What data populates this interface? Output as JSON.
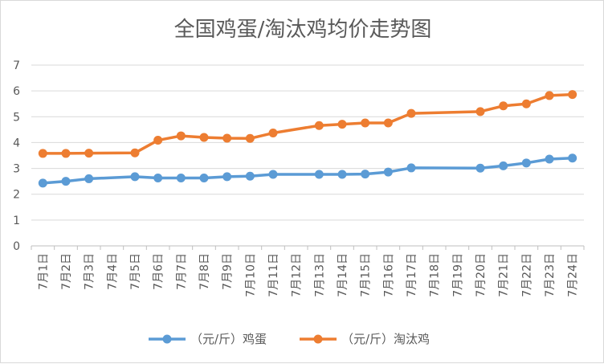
{
  "chart_data": {
    "type": "line",
    "title": "全国鸡蛋/淘汰鸡均价走势图",
    "xlabel": "",
    "ylabel": "",
    "ylim": [
      0,
      7
    ],
    "yticks": [
      "0",
      "1",
      "2",
      "3",
      "4",
      "5",
      "6",
      "7"
    ],
    "grid": true,
    "legend_position": "bottom",
    "categories": [
      "7月1日",
      "7月2日",
      "7月3日",
      "7月4日",
      "7月5日",
      "7月6日",
      "7月7日",
      "7月8日",
      "7月9日",
      "7月10日",
      "7月11日",
      "7月12日",
      "7月13日",
      "7月14日",
      "7月15日",
      "7月16日",
      "7月17日",
      "7月18日",
      "7月19日",
      "7月20日",
      "7月21日",
      "7月22日",
      "7月23日",
      "7月24日"
    ],
    "series": [
      {
        "name": "（元/斤）鸡蛋",
        "color": "#5b9bd5",
        "values": [
          2.43,
          2.5,
          2.6,
          null,
          2.68,
          2.63,
          2.63,
          2.63,
          2.68,
          2.7,
          2.77,
          null,
          2.77,
          2.77,
          2.78,
          2.86,
          3.02,
          null,
          null,
          3.01,
          3.1,
          3.21,
          3.36,
          3.4
        ]
      },
      {
        "name": "（元/斤）淘汰鸡",
        "color": "#ed7d31",
        "values": [
          3.58,
          3.58,
          3.59,
          null,
          3.6,
          4.09,
          4.26,
          4.2,
          4.17,
          4.16,
          4.37,
          null,
          4.66,
          4.71,
          4.76,
          4.76,
          5.13,
          null,
          null,
          5.2,
          5.42,
          5.5,
          5.82,
          5.86
        ]
      }
    ]
  }
}
